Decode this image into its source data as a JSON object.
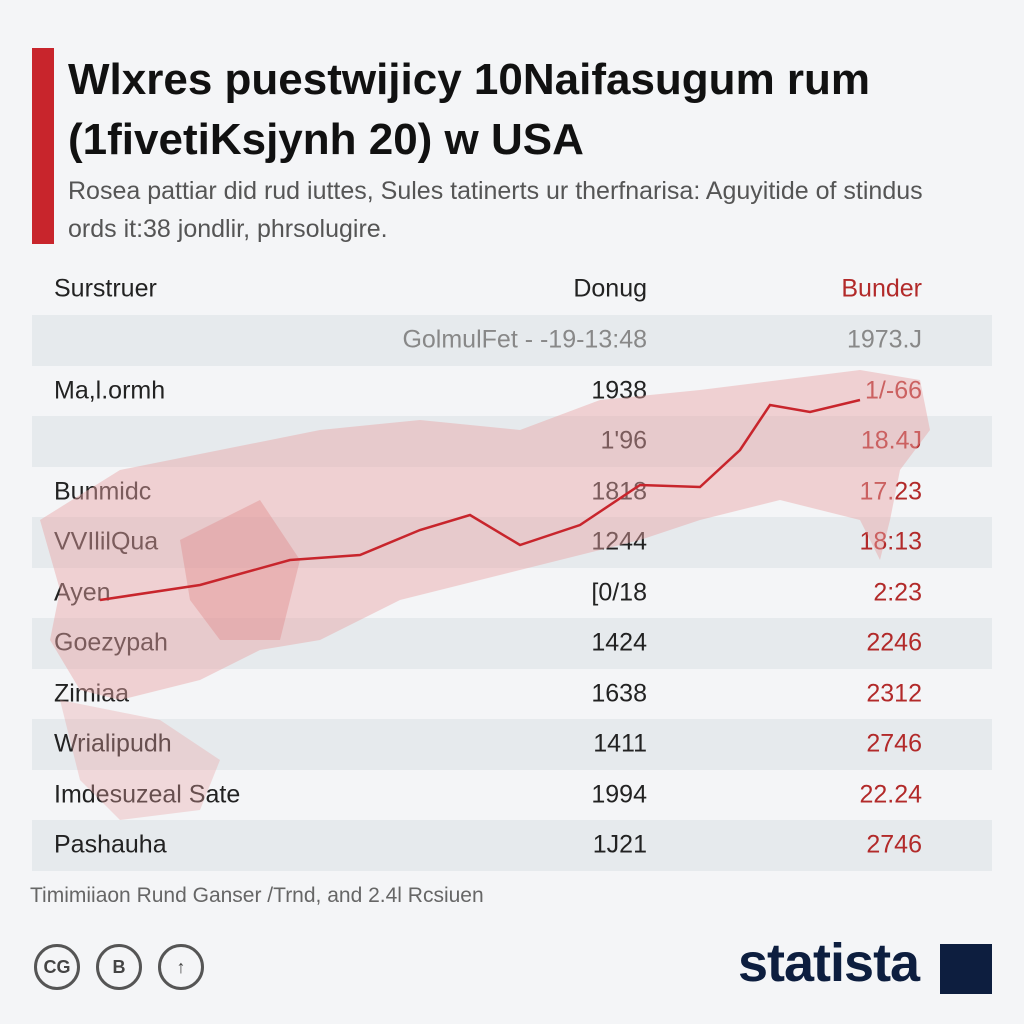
{
  "header": {
    "title": "Wlxres puestwijicy 10Naifasugum rum (1fivetiKsjynh 20) w USA",
    "subtitle": "Rosea pattiar did rud iuttes, Sules tatinerts ur therfnarisa: Aguyitide of stindus ords it:38 jondlir, phrsolugire."
  },
  "table": {
    "columns": [
      "Surstruer",
      "Donug",
      "Bunder"
    ],
    "rows": [
      [
        null,
        "GolmulFet - -19-13:48",
        "1973.J"
      ],
      [
        "Ma,l.ormh",
        "1938",
        "1/-66"
      ],
      [
        null,
        "1'96",
        "18.4J"
      ],
      [
        "Bunmidc",
        "1818",
        "17.23"
      ],
      [
        "VVIlilQua",
        "1244",
        "18:13"
      ],
      [
        "Ayen",
        "[0/18",
        "2:23"
      ],
      [
        "Goezypah",
        "1424",
        "2246"
      ],
      [
        "Zimiaa",
        "1638",
        "2312"
      ],
      [
        "Wrialipudh",
        "1411",
        "2746"
      ],
      [
        "Imdesuzeal Sate",
        "1994",
        "22.24"
      ],
      [
        "Pashauha",
        "1J21",
        "2746"
      ]
    ]
  },
  "footer": {
    "source": "Timimiiaon Rund Ganser /Trnd, and 2.4l Rcsiuen",
    "icons": [
      "CG",
      "B",
      "↑"
    ],
    "logo": "statista"
  }
}
